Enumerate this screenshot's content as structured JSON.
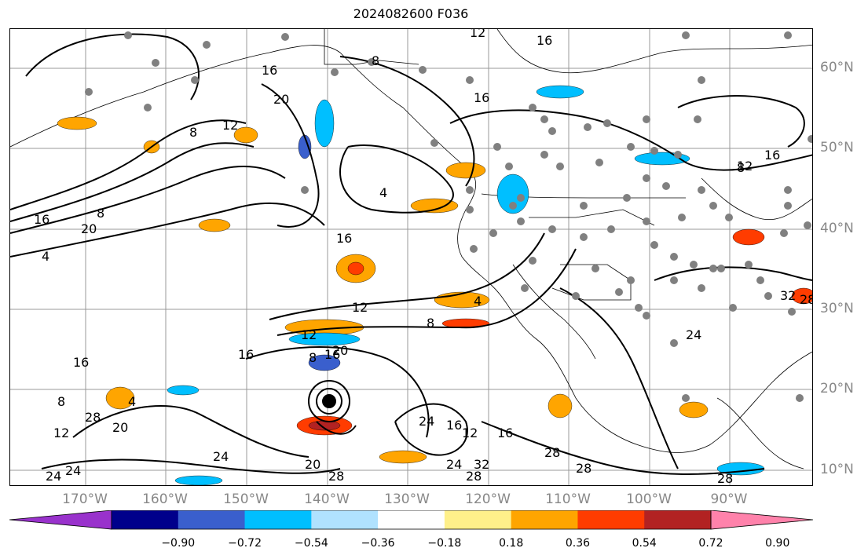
{
  "title": "2024082600 F036",
  "lat_labels": [
    "60°N",
    "50°N",
    "40°N",
    "30°N",
    "20°N",
    "10°N"
  ],
  "lon_labels": [
    "170°W",
    "160°W",
    "150°W",
    "140°W",
    "130°W",
    "120°W",
    "110°W",
    "100°W",
    "90°W"
  ],
  "colorbar": {
    "colors": [
      "#9932cc",
      "#00008b",
      "#3a5fcd",
      "#00bfff",
      "#b0e2ff",
      "#ffffff",
      "#fff08a",
      "#ffa500",
      "#ff3c00",
      "#b22222",
      "#ff82ab"
    ],
    "tick_labels": [
      "−0.90",
      "−0.72",
      "−0.54",
      "−0.36",
      "−0.18",
      "0.18",
      "0.36",
      "0.54",
      "0.72",
      "0.90"
    ]
  },
  "contour_labels": [
    "12",
    "8",
    "16",
    "16",
    "20",
    "16",
    "12",
    "8",
    "4",
    "4",
    "16",
    "12",
    "16",
    "20",
    "16",
    "8",
    "4",
    "8",
    "12",
    "16",
    "16",
    "20",
    "16",
    "8",
    "4",
    "8",
    "12",
    "20",
    "24",
    "24",
    "16",
    "12",
    "16",
    "24",
    "28",
    "32",
    "28",
    "28",
    "28",
    "28",
    "24",
    "24",
    "20",
    "28",
    "32",
    "28",
    "12",
    "8",
    "24"
  ]
}
